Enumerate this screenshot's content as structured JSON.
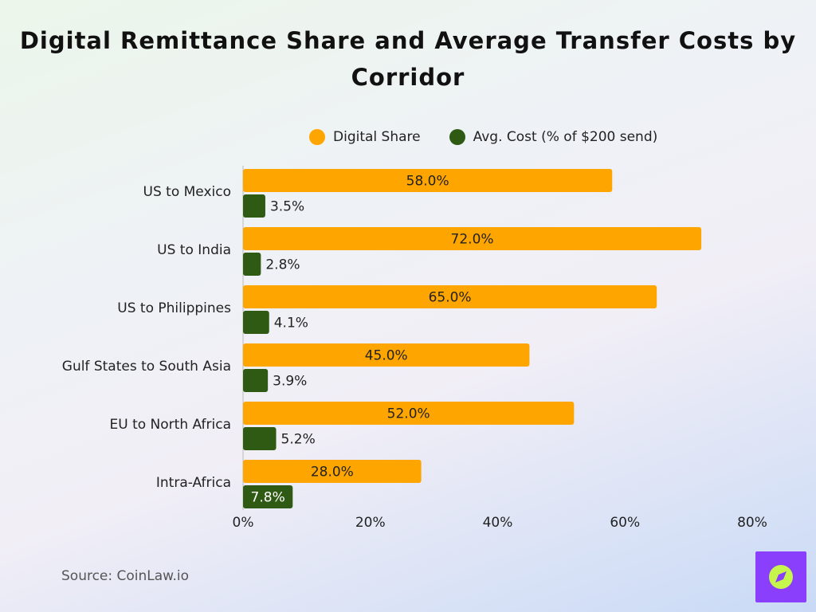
{
  "title": "Digital Remittance Share and Average Transfer Costs by Corridor",
  "source": "Source: CoinLaw.io",
  "chart_data": {
    "type": "bar",
    "orientation": "horizontal",
    "categories": [
      "US to Mexico",
      "US to India",
      "US to Philippines",
      "Gulf States to South Asia",
      "EU to North Africa",
      "Intra-Africa"
    ],
    "series": [
      {
        "name": "Digital Share",
        "values": [
          58.0,
          72.0,
          65.0,
          45.0,
          52.0,
          28.0
        ],
        "color": "#ffa500",
        "labels": [
          "58.0%",
          "72.0%",
          "65.0%",
          "45.0%",
          "52.0%",
          "28.0%"
        ]
      },
      {
        "name": "Avg. Cost (% of $200 send)",
        "values": [
          3.5,
          2.8,
          4.1,
          3.9,
          5.2,
          7.8
        ],
        "color": "#2f5a14",
        "labels": [
          "3.5%",
          "2.8%",
          "4.1%",
          "3.9%",
          "5.2%",
          "7.8%"
        ]
      }
    ],
    "xlim": [
      0,
      80
    ],
    "xticks": [
      "0%",
      "20%",
      "40%",
      "60%",
      "80%"
    ],
    "xlabel": "",
    "ylabel": "",
    "legend": "top",
    "grid": false
  },
  "logo": {
    "name": "compass-logo",
    "color": "#8a3ffc",
    "accent": "#c6f64b"
  }
}
